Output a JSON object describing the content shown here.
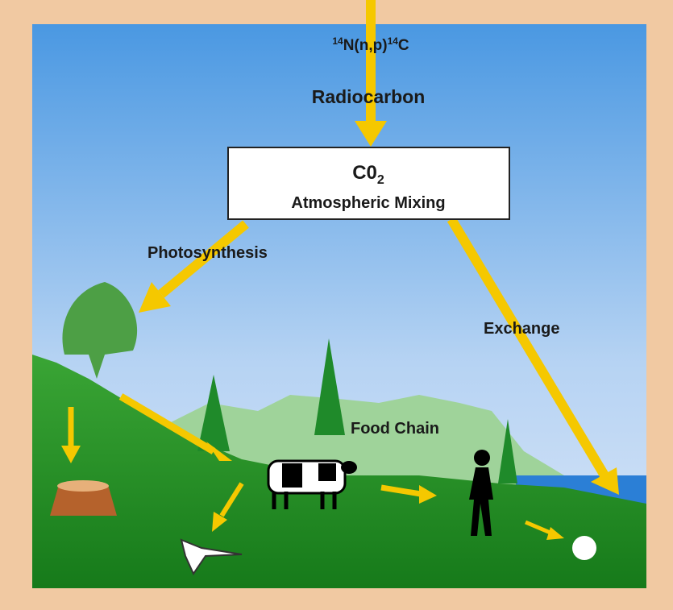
{
  "reaction": {
    "mass_number_1": "14",
    "element_1": "N(n,p)",
    "mass_number_2": "14",
    "element_2": "C"
  },
  "source_label": "Radiocarbon",
  "box": {
    "formula": "C0",
    "subscript": "2",
    "label": "Atmospheric Mixing"
  },
  "edges": [
    {
      "label": "Photosynthesis"
    },
    {
      "label": "Exchange"
    },
    {
      "label": "Food Chain"
    }
  ]
}
